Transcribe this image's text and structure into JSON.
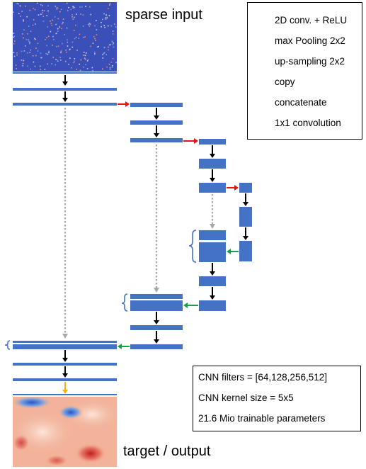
{
  "labels": {
    "input": "sparse input",
    "output": "target / output"
  },
  "legend": [
    {
      "key": "conv",
      "label": "2D conv. + ReLU",
      "color": "#000000"
    },
    {
      "key": "pool",
      "label": "max Pooling 2x2",
      "color": "#ee1111"
    },
    {
      "key": "up",
      "label": "up-sampling 2x2",
      "color": "#13a24a"
    },
    {
      "key": "copy",
      "label": "copy",
      "color": "#a8a8a8"
    },
    {
      "key": "concat",
      "label": "concatenate",
      "color": "#4472c4"
    },
    {
      "key": "one",
      "label": "1x1 convolution",
      "color": "#f5b400"
    }
  ],
  "info": [
    "CNN filters = [64,128,256,512]",
    "CNN kernel size = 5x5",
    "21.6 Mio trainable parameters"
  ],
  "colors": {
    "block": "#4472c4",
    "conv": "#000000",
    "pool": "#ee1111",
    "up": "#13a24a",
    "copy": "#a8a8a8",
    "one": "#f5b400",
    "input_bg": "#3a4fb8",
    "output_bg": "#f2b39a"
  }
}
